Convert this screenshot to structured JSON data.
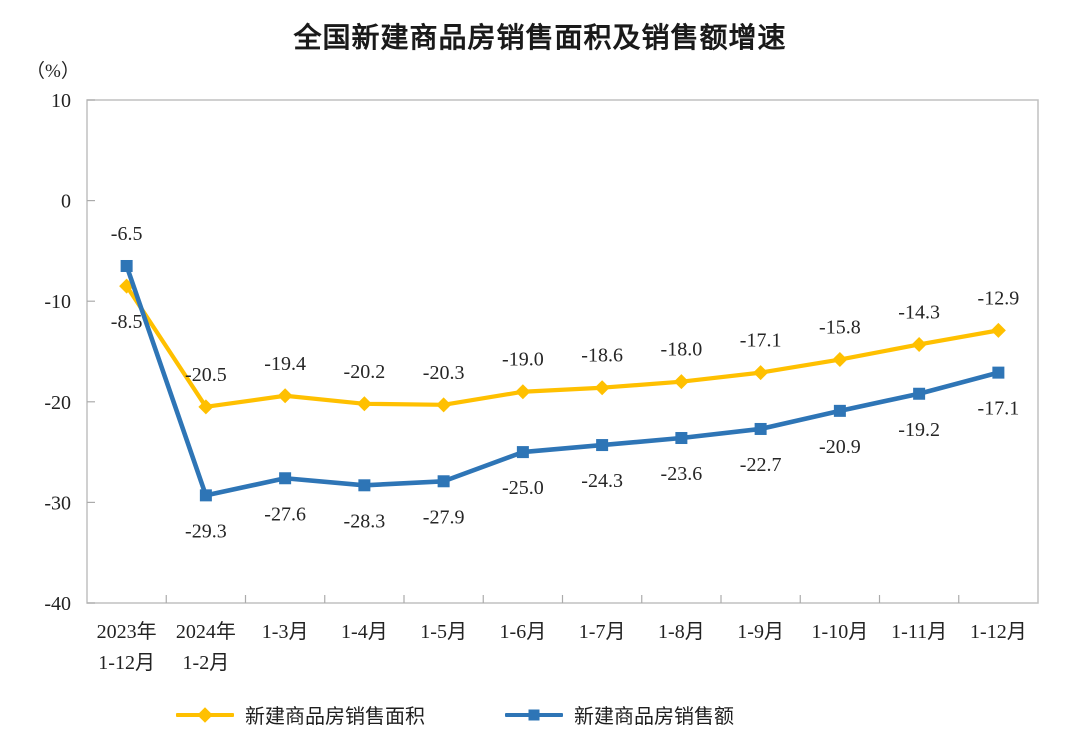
{
  "chart_data": {
    "type": "line",
    "title": "全国新建商品房销售面积及销售额增速",
    "unit_label": "（%）",
    "categories": [
      [
        "2023年",
        "1-12月"
      ],
      [
        "2024年",
        "1-2月"
      ],
      "1-3月",
      "1-4月",
      "1-5月",
      "1-6月",
      "1-7月",
      "1-8月",
      "1-9月",
      "1-10月",
      "1-11月",
      "1-12月"
    ],
    "series": [
      {
        "name": "新建商品房销售面积",
        "color": "#FFC000",
        "marker": "diamond",
        "values": [
          -8.5,
          -20.5,
          -19.4,
          -20.2,
          -20.3,
          -19.0,
          -18.6,
          -18.0,
          -17.1,
          -15.8,
          -14.3,
          -12.9
        ],
        "label_side": "above",
        "label_side_overrides": {
          "0": "below"
        }
      },
      {
        "name": "新建商品房销售额",
        "color": "#2E75B6",
        "marker": "square",
        "values": [
          -6.5,
          -29.3,
          -27.6,
          -28.3,
          -27.9,
          -25.0,
          -24.3,
          -23.6,
          -22.7,
          -20.9,
          -19.2,
          -17.1
        ],
        "label_side": "below",
        "label_side_overrides": {
          "0": "above"
        }
      }
    ],
    "y_ticks": [
      10,
      0,
      -10,
      -20,
      -30,
      -40
    ],
    "ylim": [
      -40,
      10
    ],
    "grid": false,
    "legend_position": "bottom",
    "axis_color": "#c0c0c0",
    "tick_color": "#ababab",
    "label_color": "#262626"
  }
}
